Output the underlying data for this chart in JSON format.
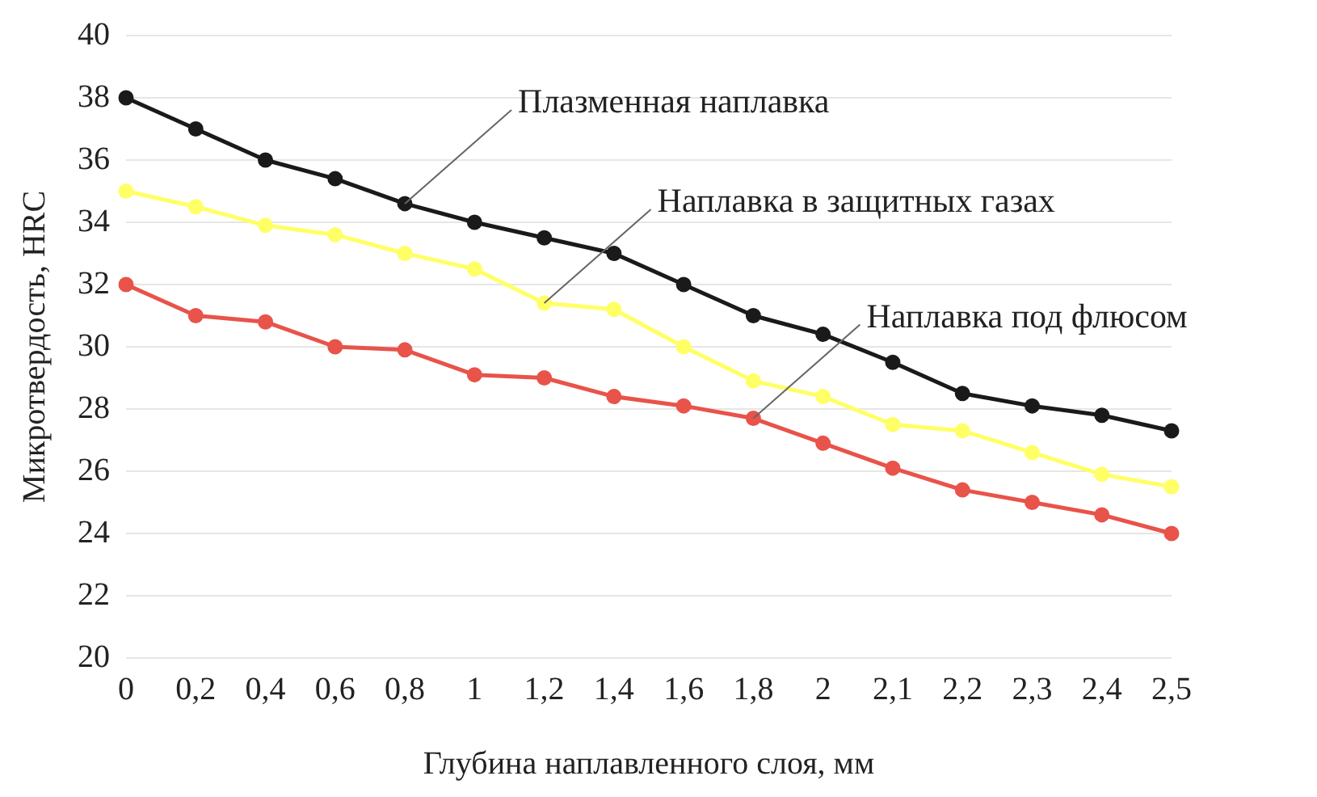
{
  "chart_data": {
    "type": "line",
    "xlabel": "Глубина наплавленного слоя, мм",
    "ylabel": "Микротвердость, HRC",
    "categories": [
      "0",
      "0,2",
      "0,4",
      "0,6",
      "0,8",
      "1",
      "1,2",
      "1,4",
      "1,6",
      "1,8",
      "2",
      "2,1",
      "2,2",
      "2,3",
      "2,4",
      "2,5"
    ],
    "series": [
      {
        "color": "#1a1a1a",
        "values": [
          38,
          37,
          36,
          35.4,
          34.6,
          34,
          33.5,
          33,
          32,
          31,
          30.4,
          29.5,
          28.5,
          28.1,
          27.8,
          27.3
        ]
      },
      {
        "color": "#ffff66",
        "values": [
          35,
          34.5,
          33.9,
          33.6,
          33,
          32.5,
          31.4,
          31.2,
          30,
          28.9,
          28.4,
          27.5,
          27.3,
          26.6,
          25.9,
          25.5
        ]
      },
      {
        "color": "#e8534a",
        "values": [
          32,
          31,
          30.8,
          30,
          29.9,
          29.1,
          29,
          28.4,
          28.1,
          27.7,
          26.9,
          26.1,
          25.4,
          25,
          24.6,
          24
        ]
      }
    ],
    "ylim": [
      20,
      40
    ],
    "yticks": [
      20,
      22,
      24,
      26,
      28,
      30,
      32,
      34,
      36,
      38,
      40
    ],
    "grid": "y",
    "legend": false,
    "marker": "circle",
    "line_style": "solid",
    "annotations": [
      {
        "text": "Плазменная наплавка",
        "x": "0,8",
        "y": 34.6
      },
      {
        "text": "Наплавка в защитных газах",
        "x": "1,2",
        "y": 31.4
      },
      {
        "text": "Наплавка под флюсом",
        "x": "1,8",
        "y": 27.7
      }
    ]
  }
}
